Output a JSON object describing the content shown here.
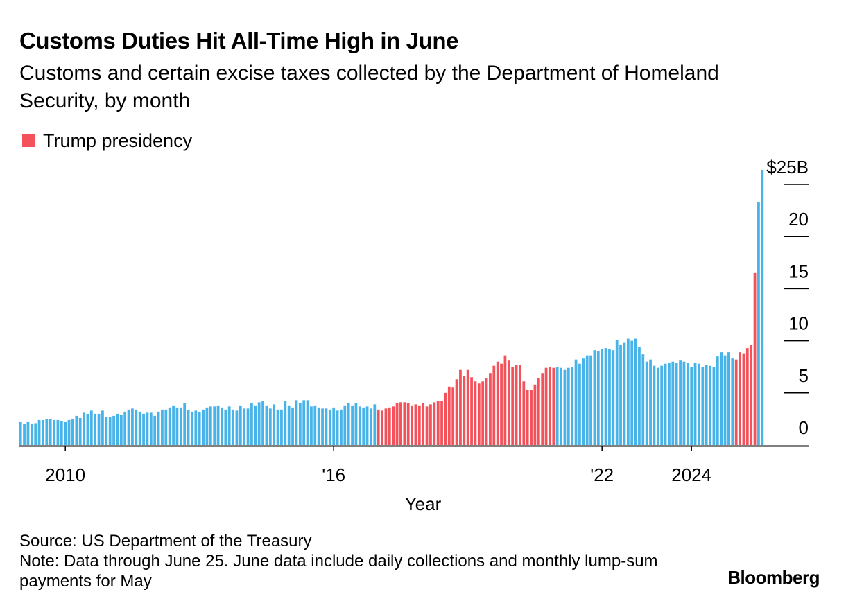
{
  "header": {
    "title": "Customs Duties Hit All-Time High in June",
    "subtitle": "Customs and certain excise taxes collected by the Department of Homeland Security, by month"
  },
  "legend": {
    "label": "Trump presidency",
    "color": "#f4525a"
  },
  "colors": {
    "default_bar": "#47b3e8",
    "trump_bar": "#f4525a",
    "axis": "#000000"
  },
  "footer": {
    "source": "Source: US Department of the Treasury",
    "note": "Note: Data through June 25. June data include daily collections and monthly lump-sum payments for May",
    "brand": "Bloomberg"
  },
  "chart_data": {
    "type": "bar",
    "xlabel": "Year",
    "ylabel": "",
    "ylim": [
      0,
      25
    ],
    "y_ticks": [
      {
        "value": 0,
        "label": "0"
      },
      {
        "value": 5,
        "label": "5"
      },
      {
        "value": 10,
        "label": "10"
      },
      {
        "value": 15,
        "label": "15"
      },
      {
        "value": 20,
        "label": "20"
      },
      {
        "value": 25,
        "label": "$25B"
      }
    ],
    "x_ticks": [
      {
        "index": 12,
        "label": "2010"
      },
      {
        "index": 84,
        "label": "'16"
      },
      {
        "index": 156,
        "label": "'22"
      },
      {
        "index": 180,
        "label": "2024"
      }
    ],
    "grid": false,
    "legend_position": "top-left",
    "start": "2009-01",
    "end": "2025-06",
    "series": [
      {
        "name": "Trump presidency",
        "highlight_ranges": [
          [
            96,
            143
          ],
          [
            192,
            197
          ]
        ],
        "values": [
          2.2,
          2.0,
          2.2,
          2.0,
          2.1,
          2.4,
          2.4,
          2.5,
          2.5,
          2.4,
          2.4,
          2.3,
          2.2,
          2.4,
          2.5,
          2.8,
          2.6,
          3.1,
          3.0,
          3.3,
          3.0,
          3.0,
          3.3,
          2.7,
          2.7,
          2.8,
          3.0,
          2.9,
          3.2,
          3.4,
          3.5,
          3.4,
          3.2,
          3.0,
          3.1,
          3.1,
          2.8,
          3.2,
          3.4,
          3.4,
          3.6,
          3.8,
          3.6,
          3.6,
          4.0,
          3.4,
          3.2,
          3.3,
          3.2,
          3.4,
          3.6,
          3.7,
          3.7,
          3.8,
          3.6,
          3.4,
          3.7,
          3.4,
          3.3,
          3.8,
          3.5,
          3.5,
          4.0,
          3.8,
          4.1,
          4.2,
          3.8,
          3.5,
          3.9,
          3.4,
          3.4,
          4.2,
          3.8,
          3.6,
          4.3,
          4.0,
          4.3,
          4.3,
          3.7,
          3.8,
          3.6,
          3.5,
          3.5,
          3.4,
          3.6,
          3.3,
          3.4,
          3.8,
          4.0,
          3.8,
          4.0,
          3.7,
          3.6,
          3.7,
          3.5,
          3.9,
          3.4,
          3.3,
          3.5,
          3.6,
          3.7,
          4.0,
          4.1,
          4.1,
          4.0,
          3.8,
          3.9,
          3.8,
          4.0,
          3.7,
          3.9,
          4.1,
          4.2,
          4.2,
          5.0,
          5.6,
          5.5,
          6.3,
          7.2,
          6.6,
          7.2,
          6.5,
          6.1,
          5.9,
          6.1,
          6.4,
          6.9,
          7.6,
          8.0,
          7.8,
          8.6,
          8.1,
          7.5,
          7.7,
          7.7,
          6.1,
          5.3,
          5.3,
          5.8,
          6.4,
          6.9,
          7.4,
          7.5,
          7.4,
          7.5,
          7.4,
          7.2,
          7.4,
          7.5,
          8.2,
          7.8,
          8.3,
          8.6,
          8.6,
          9.1,
          9.0,
          9.2,
          9.3,
          9.2,
          9.1,
          10.1,
          9.6,
          9.8,
          10.2,
          10.0,
          10.2,
          9.4,
          8.7,
          8.0,
          8.2,
          7.6,
          7.4,
          7.6,
          7.8,
          7.9,
          8.0,
          7.9,
          8.1,
          8.0,
          7.9,
          7.5,
          7.9,
          7.8,
          7.5,
          7.7,
          7.6,
          7.5,
          8.5,
          8.9,
          8.6,
          8.9,
          8.3,
          8.2,
          8.9,
          8.8,
          9.3,
          9.6,
          16.5,
          23.3,
          26.4
        ]
      }
    ]
  }
}
